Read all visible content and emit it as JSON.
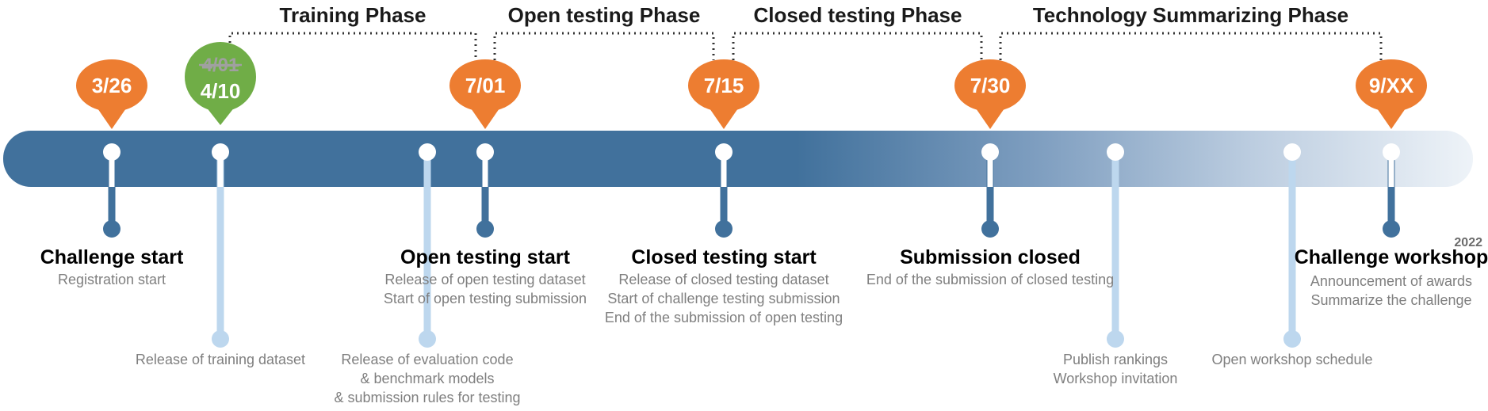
{
  "colors": {
    "bar_dark": "#41719c",
    "bar_light": "#eef3f8",
    "pin_orange": "#ed7d31",
    "pin_green": "#70ad47",
    "stem_dark": "#41719c",
    "stem_light": "#bdd7ee",
    "phase_line": "#333333",
    "desc_text": "#7f7f7f"
  },
  "phases": [
    {
      "label": "Training Phase"
    },
    {
      "label": "Open testing Phase"
    },
    {
      "label": "Closed testing Phase"
    },
    {
      "label": "Technology Summarizing Phase"
    }
  ],
  "date_pins": [
    {
      "date": "3/26",
      "color": "orange"
    },
    {
      "date": "4/10",
      "old_date": "4/01",
      "color": "green"
    },
    {
      "date": "7/01",
      "color": "orange"
    },
    {
      "date": "7/15",
      "color": "orange"
    },
    {
      "date": "7/30",
      "color": "orange"
    },
    {
      "date": "9/XX",
      "color": "orange"
    }
  ],
  "major_events": [
    {
      "title": "Challenge start",
      "lines": [
        "Registration start"
      ]
    },
    {
      "title": "Open testing start",
      "lines": [
        "Release of open testing dataset",
        "Start of open testing submission"
      ]
    },
    {
      "title": "Closed testing start",
      "lines": [
        "Release of closed testing dataset",
        "Start of challenge testing submission",
        "End of the submission of open testing"
      ]
    },
    {
      "title": "Submission closed",
      "lines": [
        "End of the submission of closed testing"
      ]
    },
    {
      "title": "Challenge workshop",
      "lines": [
        "Announcement of awards",
        "Summarize the challenge"
      ],
      "year": "2022"
    }
  ],
  "minor_events": [
    {
      "lines": [
        "Release of training dataset"
      ]
    },
    {
      "lines": [
        "Release of evaluation code",
        "& benchmark models",
        "& submission rules for testing"
      ]
    },
    {
      "lines": [
        "Publish rankings",
        "Workshop invitation"
      ]
    },
    {
      "lines": [
        "Open workshop schedule"
      ]
    }
  ]
}
